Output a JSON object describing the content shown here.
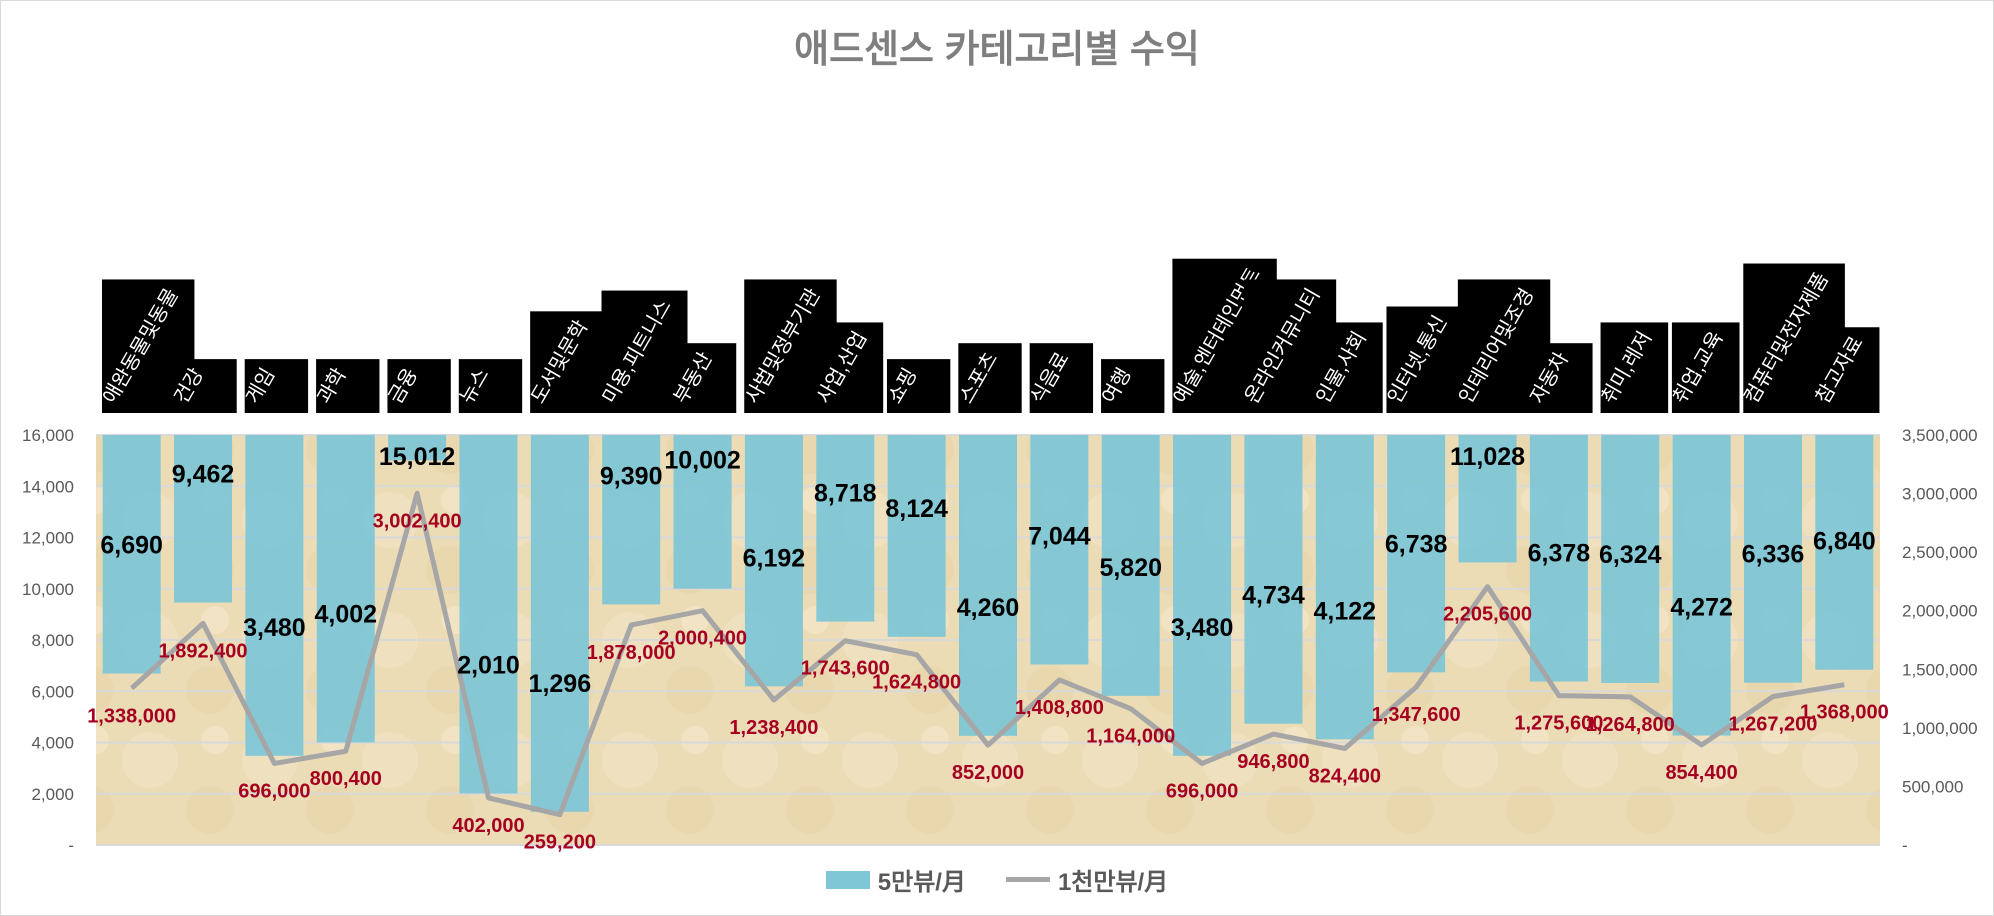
{
  "chart_data": {
    "type": "bar+line",
    "title": "애드센스 카테고리별 수익",
    "categories": [
      "애완동물및동물",
      "건강",
      "게임",
      "과학",
      "금융",
      "뉴스",
      "도서및문학",
      "미용,피트니스",
      "부동산",
      "사법및정부기관",
      "사업,산업",
      "쇼핑",
      "스포츠",
      "식음료",
      "여행",
      "예술,엔터테인먼트",
      "온라인커뮤니티",
      "인물,사회",
      "인터넷,통신",
      "인테리어및조경",
      "자동차",
      "취미,레저",
      "취업,교육",
      "컴퓨터및전자제품",
      "참고자료"
    ],
    "series": [
      {
        "name": "5만뷰/月",
        "type": "bar",
        "axis": "left",
        "color": "#7fc6d6",
        "values": [
          6690,
          9462,
          3480,
          4002,
          15012,
          2010,
          1296,
          9390,
          10002,
          6192,
          8718,
          8124,
          4260,
          7044,
          5820,
          3480,
          4734,
          4122,
          6738,
          11028,
          6378,
          6324,
          4272,
          6336,
          6840
        ],
        "labels": [
          "6,690",
          "9,462",
          "3,480",
          "4,002",
          "15,012",
          "2,010",
          "1,296",
          "9,390",
          "10,002",
          "6,192",
          "8,718",
          "8,124",
          "4,260",
          "7,044",
          "5,820",
          "3,480",
          "4,734",
          "4,122",
          "6,738",
          "11,028",
          "6,378",
          "6,324",
          "4,272",
          "6,336",
          "6,840"
        ]
      },
      {
        "name": "1천만뷰/月",
        "type": "line",
        "axis": "right",
        "color": "#a6a6a6",
        "label_color": "#a50021",
        "values": [
          1338000,
          1892400,
          696000,
          800400,
          3002400,
          402000,
          259200,
          1878000,
          2000400,
          1238400,
          1743600,
          1624800,
          852000,
          1408800,
          1164000,
          696000,
          946800,
          824400,
          1347600,
          2205600,
          1275600,
          1264800,
          854400,
          1267200,
          1368000
        ],
        "labels": [
          "1,338,000",
          "1,892,400",
          "696,000",
          "800,400",
          "3,002,400",
          "402,000",
          "259,200",
          "1,878,000",
          "2,000,400",
          "1,238,400",
          "1,743,600",
          "1,624,800",
          "852,000",
          "1,408,800",
          "1,164,000",
          "696,000",
          "946,800",
          "824,400",
          "1,347,600",
          "2,205,600",
          "1,275,600",
          "1,264,800",
          "854,400",
          "1,267,200",
          "1,368,000"
        ]
      }
    ],
    "y_left": {
      "range": [
        0,
        16000
      ],
      "ticks": [
        "-",
        "2,000",
        "4,000",
        "6,000",
        "8,000",
        "10,000",
        "12,000",
        "14,000",
        "16,000"
      ]
    },
    "y_right": {
      "range": [
        0,
        3500000
      ],
      "ticks": [
        "-",
        "500,000",
        "1,000,000",
        "1,500,000",
        "2,000,000",
        "2,500,000",
        "3,000,000",
        "3,500,000"
      ]
    },
    "bars_hang_from_top": true,
    "grid": true,
    "legend_position": "bottom",
    "plot_background": "#ecdcb6"
  }
}
